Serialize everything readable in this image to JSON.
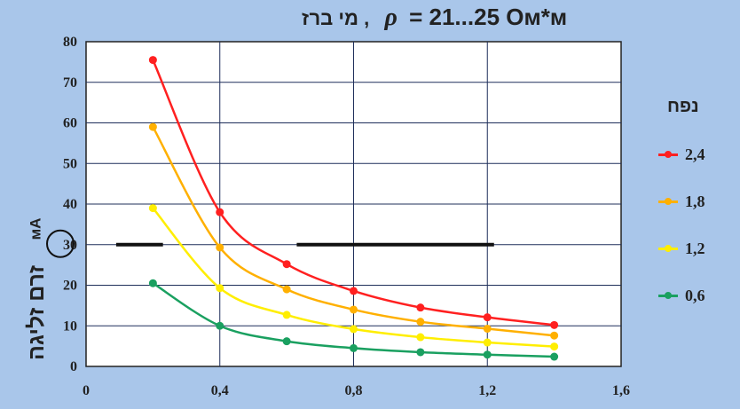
{
  "title": {
    "prefix": "מי ברז ,",
    "symbol": "ρ",
    "rest": "= 21...25 Ом*м"
  },
  "ylabel": {
    "text": "זרם זליגה",
    "unit": "мА"
  },
  "legend_title": "נפח",
  "colors": {
    "background": "#a9c6ea",
    "plot_bg": "#ffffff",
    "grid": "#1f2f5a"
  },
  "chart_data": {
    "type": "line",
    "x": [
      0.2,
      0.4,
      0.6,
      0.8,
      1.0,
      1.2,
      1.4
    ],
    "xlim": [
      0,
      1.6
    ],
    "ylim": [
      0,
      80
    ],
    "xticks": [
      "0",
      "0,4",
      "0,8",
      "1,2",
      "1,6"
    ],
    "xtick_values": [
      0,
      0.4,
      0.8,
      1.2,
      1.6
    ],
    "yticks": [
      "0",
      "10",
      "20",
      "30",
      "40",
      "50",
      "60",
      "70",
      "80"
    ],
    "ytick_values": [
      0,
      10,
      20,
      30,
      40,
      50,
      60,
      70,
      80
    ],
    "legend_position": "right",
    "series": [
      {
        "name": "2,4",
        "color": "#ff2020",
        "values": [
          75.5,
          38,
          25.2,
          18.6,
          14.5,
          12.1,
          10.2
        ]
      },
      {
        "name": "1,8",
        "color": "#ffb000",
        "values": [
          59,
          29.3,
          19,
          14,
          11,
          9.3,
          7.6
        ]
      },
      {
        "name": "1,2",
        "color": "#ffee00",
        "values": [
          39,
          19.3,
          12.7,
          9.2,
          7.2,
          5.9,
          4.9
        ]
      },
      {
        "name": "0,6",
        "color": "#1aa060",
        "values": [
          20.5,
          10,
          6.2,
          4.5,
          3.5,
          2.9,
          2.4
        ]
      }
    ],
    "annotations": [
      {
        "type": "circled-tick",
        "value": "30"
      },
      {
        "type": "reference-segment",
        "y": 30,
        "x_start": 0.09,
        "x_end": 0.23
      },
      {
        "type": "reference-segment",
        "y": 30,
        "x_start": 0.63,
        "x_end": 1.22
      }
    ]
  }
}
